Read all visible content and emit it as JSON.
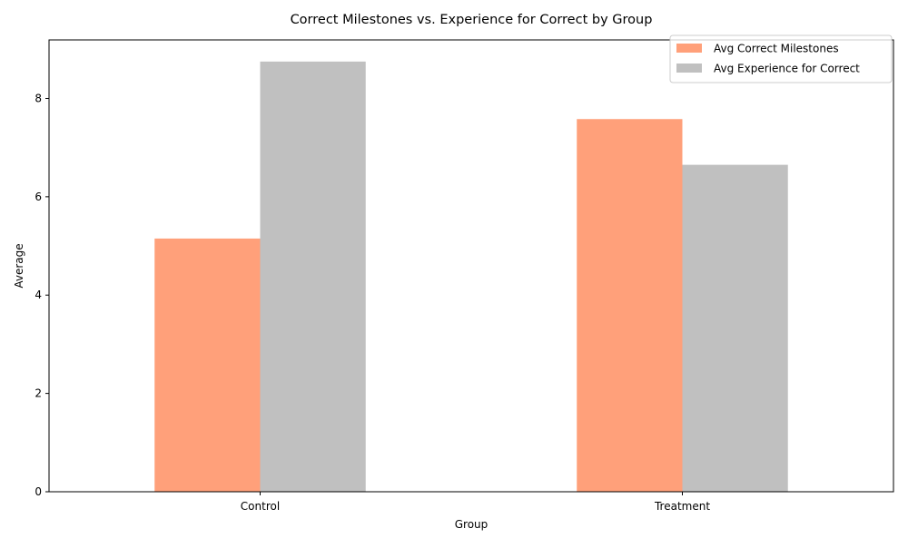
{
  "chart_data": {
    "type": "bar",
    "title": "Correct Milestones vs. Experience for Correct by Group",
    "xlabel": "Group",
    "ylabel": "Average",
    "categories": [
      "Control",
      "Treatment"
    ],
    "series": [
      {
        "name": "Avg Correct Milestones",
        "values": [
          5.15,
          7.58
        ],
        "color": "#ffa07a"
      },
      {
        "name": "Avg Experience for Correct",
        "values": [
          8.75,
          6.65
        ],
        "color": "#c0c0c0"
      }
    ],
    "ylim": [
      0,
      9.19
    ],
    "yticks": [
      0,
      2,
      4,
      6,
      8
    ],
    "ytick_labels": [
      "0",
      "2",
      "4",
      "6",
      "8"
    ],
    "grid": false,
    "legend_position": "top-right"
  }
}
